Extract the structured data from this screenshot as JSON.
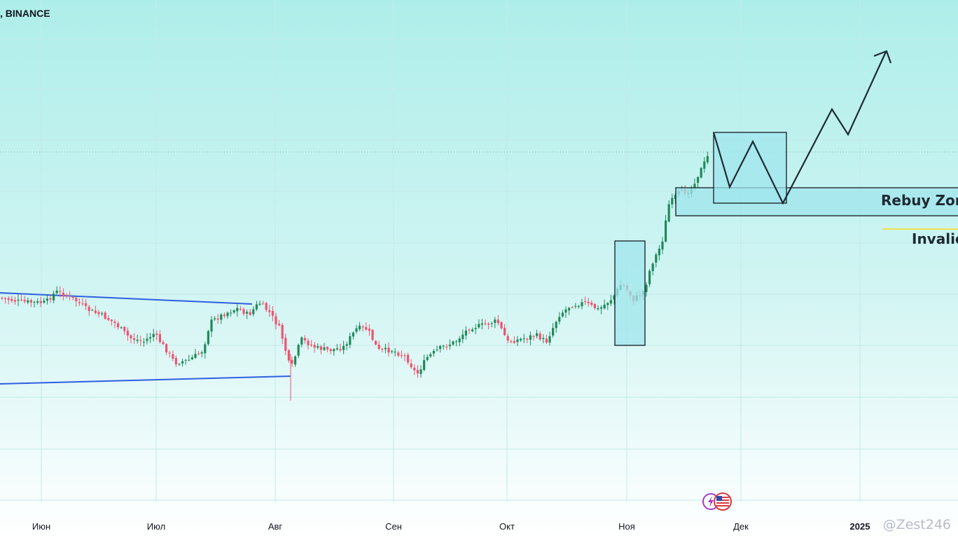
{
  "header": {
    "symbol": ", BINANCE"
  },
  "colors": {
    "bg_top": "#aeeeea",
    "bg_bottom": "#ffffff",
    "up": "#26a69a",
    "up_body": "#1f8a5a",
    "down": "#ef5370",
    "trendline": "#2f5fe0",
    "zone_fill": "#9fe6ec",
    "zone_stroke": "#1e2a33",
    "invalidation_line": "#f0e24a",
    "projection": "#1e2a33"
  },
  "chart_data": {
    "type": "candlestick",
    "x_axis": {
      "tick_labels": [
        "Июн",
        "Июл",
        "Авг",
        "Сен",
        "Окт",
        "Ноя",
        "Дек",
        "2025"
      ]
    },
    "grid": true,
    "annotations": {
      "rebuy_zone": "Rebuy Zon",
      "invalidation": "Invalic"
    },
    "candles_note": "Daily candles, roughly June to late November; price ranges sideways, then rallies sharply in November"
  },
  "watermark": "@Zest246",
  "event_icons": [
    "lightning-icon",
    "us-flag-icon"
  ]
}
